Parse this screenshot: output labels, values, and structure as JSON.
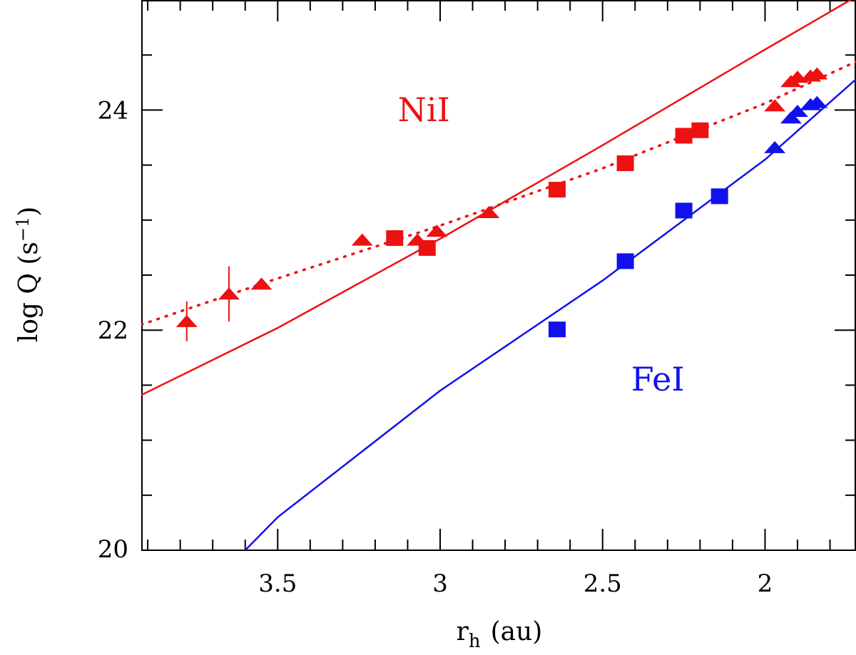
{
  "chart_data": {
    "type": "scatter",
    "title": "",
    "xlabel": "r",
    "xlabel_sub": "h",
    "xlabel_unit": "(au)",
    "ylabel": "log  Q  (s",
    "ylabel_sup": "−1",
    "ylabel_close": ")",
    "xlim": [
      3.92,
      1.72
    ],
    "ylim": [
      20,
      25
    ],
    "x_reversed": true,
    "x_ticks": [
      3.5,
      3.0,
      2.5,
      2.0
    ],
    "x_tick_labels": [
      "3.5",
      "3",
      "2.5",
      "2"
    ],
    "y_ticks": [
      20,
      22,
      24
    ],
    "y_tick_labels": [
      "20",
      "22",
      "24"
    ],
    "annotations": [
      {
        "text": "NiI",
        "x": 3.05,
        "y": 23.9,
        "color": "#ee1111"
      },
      {
        "text": "FeI",
        "x": 2.33,
        "y": 21.45,
        "color": "#1111ee"
      }
    ],
    "series": [
      {
        "name": "NiI triangles",
        "marker": "triangle",
        "color": "#ee1111",
        "points": [
          {
            "x": 3.78,
            "y": 22.08,
            "yerr": 0.18
          },
          {
            "x": 3.65,
            "y": 22.33,
            "yerr": 0.25
          },
          {
            "x": 3.55,
            "y": 22.42
          },
          {
            "x": 3.24,
            "y": 22.82
          },
          {
            "x": 3.07,
            "y": 22.82
          },
          {
            "x": 3.01,
            "y": 22.9
          },
          {
            "x": 2.85,
            "y": 23.07
          },
          {
            "x": 1.97,
            "y": 24.04
          },
          {
            "x": 1.92,
            "y": 24.26
          },
          {
            "x": 1.9,
            "y": 24.3
          },
          {
            "x": 1.86,
            "y": 24.31
          },
          {
            "x": 1.84,
            "y": 24.33
          }
        ]
      },
      {
        "name": "NiI squares",
        "marker": "square",
        "color": "#ee1111",
        "points": [
          {
            "x": 3.14,
            "y": 22.83
          },
          {
            "x": 3.04,
            "y": 22.74
          },
          {
            "x": 2.64,
            "y": 23.27
          },
          {
            "x": 2.43,
            "y": 23.51
          },
          {
            "x": 2.25,
            "y": 23.76
          },
          {
            "x": 2.2,
            "y": 23.81
          }
        ]
      },
      {
        "name": "FeI squares",
        "marker": "square",
        "color": "#1111ee",
        "points": [
          {
            "x": 2.64,
            "y": 22.0
          },
          {
            "x": 2.43,
            "y": 22.62
          },
          {
            "x": 2.25,
            "y": 23.08
          },
          {
            "x": 2.14,
            "y": 23.21
          }
        ]
      },
      {
        "name": "FeI triangles",
        "marker": "triangle",
        "color": "#1111ee",
        "points": [
          {
            "x": 1.97,
            "y": 23.66
          },
          {
            "x": 1.92,
            "y": 23.93
          },
          {
            "x": 1.9,
            "y": 23.99
          },
          {
            "x": 1.86,
            "y": 24.05
          },
          {
            "x": 1.84,
            "y": 24.07
          }
        ]
      }
    ],
    "curves": [
      {
        "name": "NiI model",
        "style": "solid",
        "color": "#ee1111",
        "points": [
          [
            3.92,
            21.41
          ],
          [
            3.5,
            22.02
          ],
          [
            3.0,
            22.83
          ],
          [
            2.5,
            23.68
          ],
          [
            2.0,
            24.55
          ],
          [
            1.72,
            25.03
          ]
        ]
      },
      {
        "name": "NiI fit",
        "style": "dotted",
        "color": "#ee1111",
        "points": [
          [
            3.92,
            22.05
          ],
          [
            3.5,
            22.47
          ],
          [
            3.0,
            22.95
          ],
          [
            2.5,
            23.47
          ],
          [
            2.0,
            24.06
          ],
          [
            1.72,
            24.44
          ]
        ]
      },
      {
        "name": "FeI model",
        "style": "solid",
        "color": "#1111ee",
        "points": [
          [
            3.6,
            20.0
          ],
          [
            3.5,
            20.3
          ],
          [
            3.0,
            21.45
          ],
          [
            2.5,
            22.45
          ],
          [
            2.0,
            23.55
          ],
          [
            1.72,
            24.28
          ]
        ]
      }
    ]
  }
}
